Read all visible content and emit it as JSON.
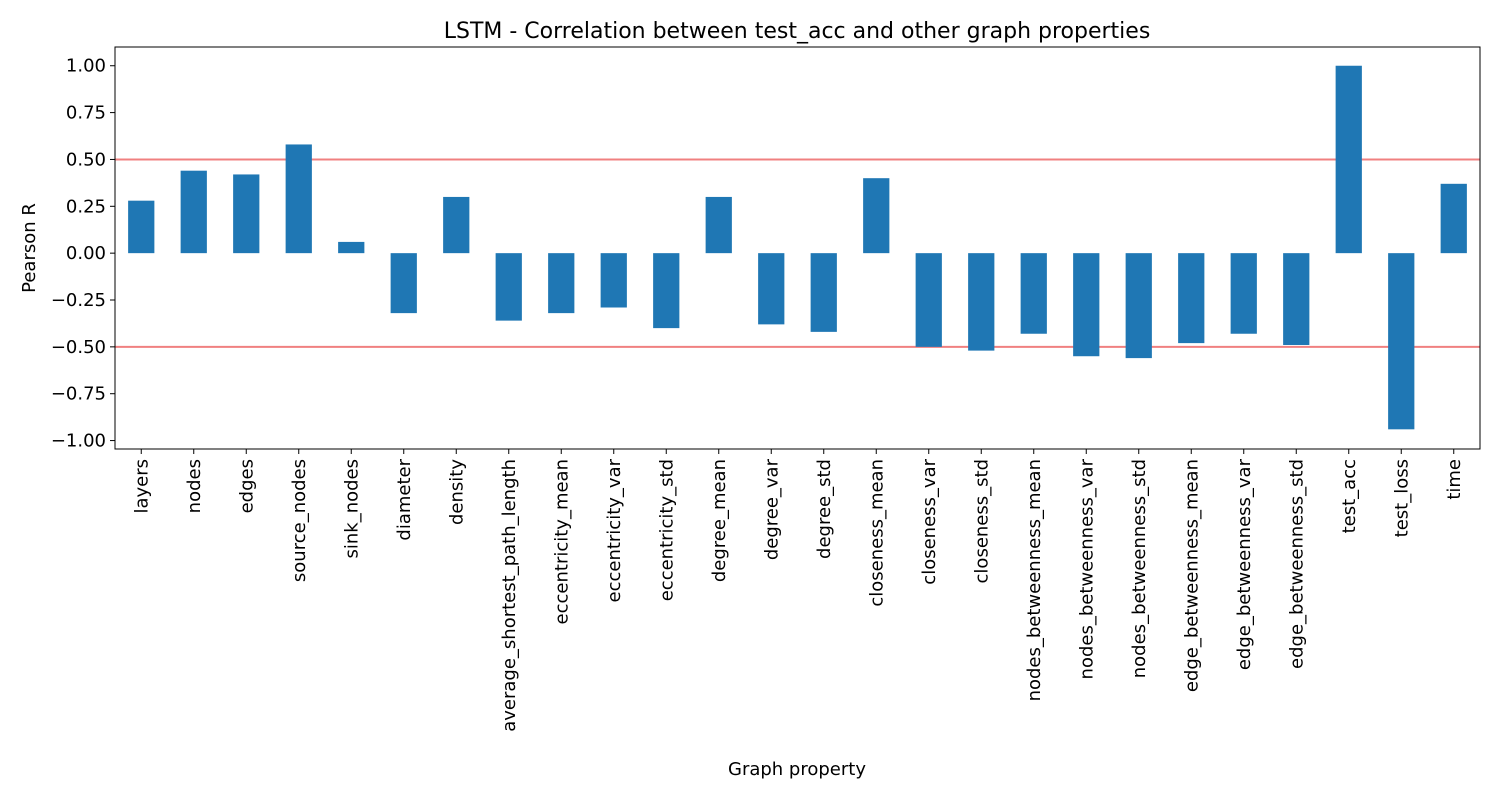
{
  "chart_data": {
    "type": "bar",
    "title": "LSTM - Correlation between test_acc and other graph properties",
    "xlabel": "Graph property",
    "ylabel": "Pearson R",
    "ylim": [
      -1.045,
      1.1
    ],
    "yticks": [
      1.0,
      0.75,
      0.5,
      0.25,
      0.0,
      -0.25,
      -0.5,
      -0.75,
      -1.0
    ],
    "ytick_labels": [
      "1.00",
      "0.75",
      "0.50",
      "0.25",
      "0.00",
      "−0.25",
      "−0.50",
      "−0.75",
      "−1.00"
    ],
    "categories": [
      "layers",
      "nodes",
      "edges",
      "source_nodes",
      "sink_nodes",
      "diameter",
      "density",
      "average_shortest_path_length",
      "eccentricity_mean",
      "eccentricity_var",
      "eccentricity_std",
      "degree_mean",
      "degree_var",
      "degree_std",
      "closeness_mean",
      "closeness_var",
      "closeness_std",
      "nodes_betweenness_mean",
      "nodes_betweenness_var",
      "nodes_betweenness_std",
      "edge_betweenness_mean",
      "edge_betweenness_var",
      "edge_betweenness_std",
      "test_acc",
      "test_loss",
      "time"
    ],
    "values": [
      0.28,
      0.44,
      0.42,
      0.58,
      0.06,
      -0.32,
      0.3,
      -0.36,
      -0.32,
      -0.29,
      -0.4,
      0.3,
      -0.38,
      -0.42,
      0.4,
      -0.5,
      -0.52,
      -0.43,
      -0.55,
      -0.56,
      -0.48,
      -0.43,
      -0.49,
      1.0,
      -0.94,
      0.37
    ],
    "reference_lines": [
      0.5,
      -0.5
    ],
    "grid": false,
    "colors": {
      "bar": "#1f77b4",
      "reference_line": "#f08080",
      "axes": "#000000"
    }
  }
}
